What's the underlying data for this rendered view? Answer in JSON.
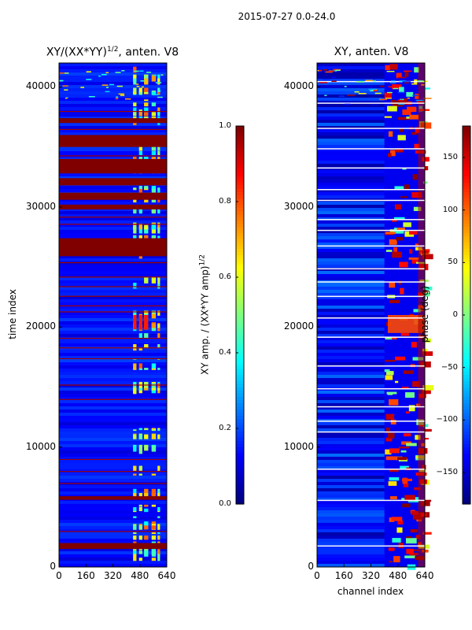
{
  "figure": {
    "suptitle": "2015-07-27 0.0-24.0"
  },
  "chart_data": [
    {
      "type": "heatmap",
      "title": "XY/(XX*YY)^1/2, anten. V8",
      "title_main": "XY/(XX*YY)",
      "title_sup": "1/2",
      "title_rest": ", anten. V8",
      "xlabel": "",
      "ylabel": "time index",
      "xlim": [
        0,
        640
      ],
      "ylim": [
        0,
        42000
      ],
      "xticks": [
        0,
        160,
        320,
        480,
        640
      ],
      "yticks": [
        0,
        10000,
        20000,
        30000,
        40000
      ],
      "colormap": "jet",
      "colorbar": {
        "label_main": "XY amp. / (XX*YY amp)",
        "label_sup": "1/2",
        "range": [
          0.0,
          1.0
        ],
        "ticks": [
          "0.0",
          "0.2",
          "0.4",
          "0.6",
          "0.8",
          "1.0"
        ],
        "tick_values": [
          0.0,
          0.2,
          0.4,
          0.6,
          0.8,
          1.0
        ]
      },
      "background_value": 0.12,
      "features": [
        {
          "desc": "saturated bands",
          "y_ranges": [
            [
              1500,
              2000
            ],
            [
              5600,
              5900
            ],
            [
              25900,
              27400
            ],
            [
              29800,
              30200
            ],
            [
              30600,
              31200
            ],
            [
              31800,
              32400
            ],
            [
              32800,
              34000
            ],
            [
              35000,
              36000
            ],
            [
              37000,
              37400
            ]
          ],
          "value": 1.0
        },
        {
          "desc": "thin saturated lines",
          "y_list": [
            3000,
            7000,
            8000,
            9000,
            14000,
            15200,
            17400,
            18300,
            19100,
            21300,
            21800,
            22600,
            23400,
            24200,
            25400,
            28600,
            29200,
            34300,
            36500,
            38000
          ],
          "value": 0.97
        },
        {
          "desc": "RFI columns",
          "x_ranges": [
            [
              440,
              460
            ],
            [
              475,
              495
            ],
            [
              505,
              530
            ],
            [
              550,
              575
            ],
            [
              585,
              600
            ]
          ],
          "value": 0.5
        }
      ]
    },
    {
      "type": "heatmap",
      "title": "XY, anten. V8",
      "xlabel": "channel index",
      "ylabel": "",
      "xlim": [
        0,
        640
      ],
      "ylim": [
        0,
        42000
      ],
      "xticks": [
        0,
        160,
        320,
        480,
        640
      ],
      "yticks": [
        0,
        10000,
        20000,
        30000,
        40000
      ],
      "colormap": "jet",
      "colorbar": {
        "label": "phase (deg)",
        "range": [
          -180,
          180
        ],
        "ticks": [
          "−150",
          "−100",
          "−50",
          "0",
          "50",
          "100",
          "150"
        ],
        "tick_values": [
          -150,
          -100,
          -50,
          0,
          50,
          100,
          150
        ]
      },
      "background_value": -140,
      "features": [
        {
          "desc": "high-phase RFI region",
          "x_range": [
            400,
            640
          ],
          "value": 150
        },
        {
          "desc": "white gaps",
          "y_list": [
            1800,
            5600,
            8200,
            11300,
            12200,
            13400,
            14900,
            16800,
            19200,
            20800,
            22600,
            23800,
            24900,
            26800,
            28100,
            29000,
            30600,
            31500,
            33300,
            34900,
            36600,
            38700,
            40500
          ]
        }
      ]
    }
  ]
}
